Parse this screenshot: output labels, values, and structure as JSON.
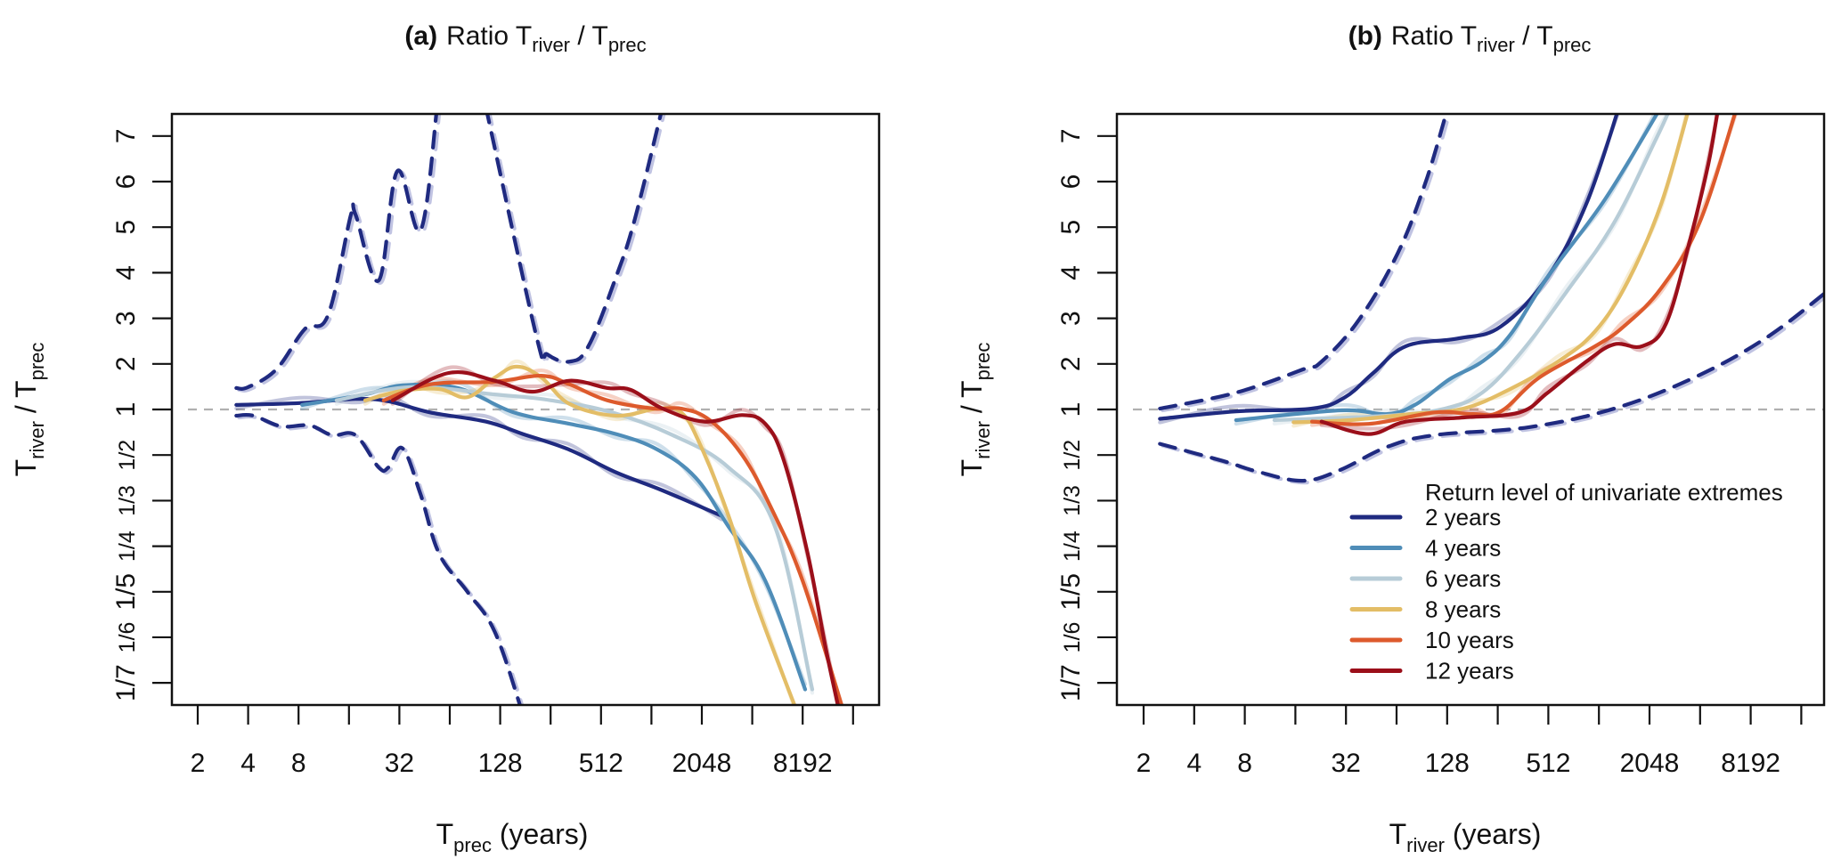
{
  "chart_data": [
    {
      "type": "line",
      "panel_letter": "a",
      "title": "Ratio T_river / T_prec",
      "title_parts": {
        "main": "Ratio T",
        "sub1": "river",
        "sep": " / T",
        "sub2": "prec"
      },
      "xlabel": "T_prec (years)",
      "xlabel_parts": {
        "main": "T",
        "sub": "prec",
        "rest": " (years)"
      },
      "ylabel": "T_river / T_prec",
      "ylabel_parts": {
        "main": "T",
        "sub1": "river",
        "sep": " / T",
        "sub2": "prec"
      },
      "x_scale": "log2",
      "x_ticks": [
        2,
        4,
        8,
        16,
        32,
        64,
        128,
        256,
        512,
        1024,
        2048,
        4096,
        8192,
        16384
      ],
      "x_tick_labels": [
        "2",
        "4",
        "8",
        "",
        "32",
        "",
        "128",
        "",
        "512",
        "",
        "2048",
        "",
        "8192",
        ""
      ],
      "y_scale": "ratio-symmetric",
      "y_ticks": [
        7,
        6,
        5,
        4,
        3,
        2,
        1,
        0.5,
        0.3333,
        0.25,
        0.2,
        0.1667,
        0.1429
      ],
      "y_tick_labels": [
        "7",
        "6",
        "5",
        "4",
        "3",
        "2",
        "1",
        "1/2",
        "1/3",
        "1/4",
        "1/5",
        "1/6",
        "1/7"
      ],
      "reference_line": 1,
      "grid": false,
      "series": [
        {
          "name": "2 years",
          "color": "#1f2a80",
          "style": "solid",
          "points": [
            [
              3.4,
              1.1
            ],
            [
              8.1,
              1.14
            ],
            [
              17.5,
              1.23
            ],
            [
              27.5,
              1.18
            ],
            [
              48.8,
              0.94
            ],
            [
              105,
              0.79
            ],
            [
              175,
              0.65
            ],
            [
              333,
              0.53
            ],
            [
              630,
              0.42
            ],
            [
              1193,
              0.36
            ],
            [
              2684,
              0.3
            ]
          ]
        },
        {
          "name": "4 years",
          "color": "#4f8db8",
          "style": "solid",
          "points": [
            [
              8.4,
              1.1
            ],
            [
              20,
              1.33
            ],
            [
              33.4,
              1.53
            ],
            [
              71.5,
              1.47
            ],
            [
              154,
              0.94
            ],
            [
              333,
              0.76
            ],
            [
              630,
              0.65
            ],
            [
              1120,
              0.53
            ],
            [
              1884,
              0.4
            ],
            [
              2957,
              0.28
            ],
            [
              4904,
              0.21
            ],
            [
              8481,
              0.14
            ]
          ]
        },
        {
          "name": "6 years",
          "color": "#b7ccd7",
          "style": "solid",
          "points": [
            [
              13.5,
              1.2
            ],
            [
              37.8,
              1.49
            ],
            [
              119,
              1.33
            ],
            [
              258,
              1.2
            ],
            [
              596,
              0.94
            ],
            [
              1370,
              0.64
            ],
            [
              2957,
              0.44
            ],
            [
              5594,
              0.28
            ],
            [
              9345,
              0.14
            ]
          ]
        },
        {
          "name": "8 years",
          "color": "#e3bd66",
          "style": "solid",
          "points": [
            [
              20,
              1.2
            ],
            [
              33.4,
              1.41
            ],
            [
              55.3,
              1.45
            ],
            [
              81.6,
              1.27
            ],
            [
              119,
              1.7
            ],
            [
              161,
              1.94
            ],
            [
              226,
              1.7
            ],
            [
              333,
              1.12
            ],
            [
              630,
              0.88
            ],
            [
              1120,
              1.02
            ],
            [
              1541,
              0.94
            ],
            [
              1992,
              0.57
            ],
            [
              2957,
              0.3
            ],
            [
              4329,
              0.19
            ],
            [
              7696,
              0.13
            ]
          ]
        },
        {
          "name": "10 years",
          "color": "#dd5a2c",
          "style": "solid",
          "points": [
            [
              25.8,
              1.2
            ],
            [
              48.8,
              1.55
            ],
            [
              119,
              1.61
            ],
            [
              226,
              1.74
            ],
            [
              333,
              1.55
            ],
            [
              560,
              1.2
            ],
            [
              1060,
              1.02
            ],
            [
              1541,
              1.02
            ],
            [
              2288,
              0.81
            ],
            [
              3566,
              0.5
            ],
            [
              5256,
              0.32
            ],
            [
              8192,
              0.21
            ],
            [
              14562,
              0.13
            ]
          ]
        },
        {
          "name": "12 years",
          "color": "#9b0f1a",
          "style": "solid",
          "points": [
            [
              29.2,
              1.2
            ],
            [
              63.1,
              1.8
            ],
            [
              119,
              1.63
            ],
            [
              199,
              1.39
            ],
            [
              333,
              1.63
            ],
            [
              560,
              1.47
            ],
            [
              771,
              1.43
            ],
            [
              1193,
              1.02
            ],
            [
              2120,
              0.79
            ],
            [
              3566,
              0.89
            ],
            [
              4904,
              0.76
            ],
            [
              6338,
              0.47
            ],
            [
              8780,
              0.24
            ],
            [
              11268,
              0.16
            ],
            [
              13682,
              0.13
            ]
          ]
        },
        {
          "name": "2 years upper bound",
          "color": "#1f2a80",
          "style": "dashed",
          "points": [
            [
              3.4,
              1.47
            ],
            [
              4.0,
              1.49
            ],
            [
              5.9,
              1.88
            ],
            [
              8.7,
              2.76
            ],
            [
              12,
              3.07
            ],
            [
              16.4,
              5.26
            ],
            [
              17.5,
              5.28
            ],
            [
              24.1,
              3.83
            ],
            [
              31.1,
              6.23
            ],
            [
              42.8,
              4.93
            ],
            [
              53.8,
              7.64
            ]
          ]
        },
        {
          "name": "2 years upper bound (cont.)",
          "color": "#1f2a80",
          "style": "dashed",
          "points": [
            [
              105,
              7.64
            ],
            [
              212,
              2.56
            ],
            [
              244,
              2.21
            ],
            [
              333,
              2.05
            ],
            [
              431,
              2.39
            ],
            [
              630,
              3.91
            ],
            [
              815,
              5.18
            ],
            [
              1193,
              7.64
            ]
          ]
        },
        {
          "name": "2 years lower bound",
          "color": "#1f2a80",
          "style": "dashed",
          "points": [
            [
              3.4,
              0.88
            ],
            [
              4.3,
              0.88
            ],
            [
              6.3,
              0.73
            ],
            [
              9.3,
              0.74
            ],
            [
              12.7,
              0.64
            ],
            [
              17.5,
              0.64
            ],
            [
              24.1,
              0.44
            ],
            [
              27.5,
              0.44
            ],
            [
              33.4,
              0.54
            ],
            [
              42.8,
              0.35
            ],
            [
              55.3,
              0.24
            ],
            [
              81.6,
              0.2
            ],
            [
              119,
              0.17
            ],
            [
              175,
              0.13
            ]
          ]
        }
      ]
    },
    {
      "type": "line",
      "panel_letter": "b",
      "title": "Ratio T_river / T_prec",
      "title_parts": {
        "main": "Ratio T",
        "sub1": "river",
        "sep": " / T",
        "sub2": "prec"
      },
      "xlabel": "T_river (years)",
      "xlabel_parts": {
        "main": "T",
        "sub": "river",
        "rest": " (years)"
      },
      "ylabel": "T_river / T_prec",
      "ylabel_parts": {
        "main": "T",
        "sub1": "river",
        "sep": " / T",
        "sub2": "prec"
      },
      "x_scale": "log2",
      "x_ticks": [
        2,
        4,
        8,
        16,
        32,
        64,
        128,
        256,
        512,
        1024,
        2048,
        4096,
        8192,
        16384
      ],
      "x_tick_labels": [
        "2",
        "4",
        "8",
        "",
        "32",
        "",
        "128",
        "",
        "512",
        "",
        "2048",
        "",
        "8192",
        ""
      ],
      "y_scale": "ratio-symmetric",
      "y_ticks": [
        7,
        6,
        5,
        4,
        3,
        2,
        1,
        0.5,
        0.3333,
        0.25,
        0.2,
        0.1667,
        0.1429
      ],
      "y_tick_labels": [
        "7",
        "6",
        "5",
        "4",
        "3",
        "2",
        "1",
        "1/2",
        "1/3",
        "1/4",
        "1/5",
        "1/6",
        "1/7"
      ],
      "reference_line": 1,
      "grid": false,
      "legend": {
        "title": "Return level of univariate extremes",
        "position": "bottom-right",
        "entries": [
          "2 years",
          "4 years",
          "6 years",
          "8 years",
          "10 years",
          "12 years"
        ]
      },
      "series": [
        {
          "name": "2 years",
          "color": "#1f2a80",
          "style": "solid",
          "points": [
            [
              2.5,
              0.83
            ],
            [
              7.1,
              0.96
            ],
            [
              20.1,
              1.02
            ],
            [
              31.6,
              1.27
            ],
            [
              46.5,
              1.8
            ],
            [
              73,
              2.39
            ],
            [
              150,
              2.56
            ],
            [
              267,
              2.82
            ],
            [
              508,
              3.91
            ],
            [
              861,
              5.51
            ],
            [
              1351,
              7.64
            ]
          ]
        },
        {
          "name": "4 years",
          "color": "#4f8db8",
          "style": "solid",
          "points": [
            [
              7.1,
              0.81
            ],
            [
              29.6,
              0.98
            ],
            [
              56.5,
              0.91
            ],
            [
              83.9,
              1.12
            ],
            [
              132,
              1.66
            ],
            [
              207,
              2.05
            ],
            [
              304,
              2.64
            ],
            [
              508,
              3.91
            ],
            [
              1113,
              5.61
            ],
            [
              2402,
              7.64
            ]
          ]
        },
        {
          "name": "6 years",
          "color": "#b7ccd7",
          "style": "solid",
          "points": [
            [
              12,
              0.81
            ],
            [
              56.5,
              0.88
            ],
            [
              124,
              1.02
            ],
            [
              207,
              1.37
            ],
            [
              345,
              2.21
            ],
            [
              657,
              3.58
            ],
            [
              1261,
              5.1
            ],
            [
              2257,
              6.96
            ],
            [
              2740,
              7.64
            ]
          ]
        },
        {
          "name": "8 years",
          "color": "#e3bd66",
          "style": "solid",
          "points": [
            [
              15.6,
              0.78
            ],
            [
              33.8,
              0.81
            ],
            [
              77.7,
              0.91
            ],
            [
              160,
              1.02
            ],
            [
              304,
              1.45
            ],
            [
              584,
              2.05
            ],
            [
              975,
              2.72
            ],
            [
              1531,
              3.83
            ],
            [
              2402,
              5.51
            ],
            [
              3540,
              7.64
            ]
          ]
        },
        {
          "name": "10 years",
          "color": "#dd5a2c",
          "style": "solid",
          "points": [
            [
              20.1,
              0.79
            ],
            [
              43.7,
              0.76
            ],
            [
              108,
              0.94
            ],
            [
              181,
              0.91
            ],
            [
              267,
              0.96
            ],
            [
              452,
              1.7
            ],
            [
              975,
              2.39
            ],
            [
              1438,
              2.82
            ],
            [
              2402,
              3.66
            ],
            [
              4067,
              5.1
            ],
            [
              6793,
              7.64
            ]
          ]
        },
        {
          "name": "12 years",
          "color": "#9b0f1a",
          "style": "solid",
          "points": [
            [
              22.9,
              0.79
            ],
            [
              43.7,
              0.65
            ],
            [
              73,
              0.79
            ],
            [
              160,
              0.85
            ],
            [
              345,
              0.94
            ],
            [
              508,
              1.37
            ],
            [
              861,
              2.05
            ],
            [
              1261,
              2.43
            ],
            [
              1858,
              2.39
            ],
            [
              2574,
              2.89
            ],
            [
              3540,
              4.67
            ],
            [
              4575,
              6.37
            ],
            [
              5256,
              7.64
            ]
          ]
        },
        {
          "name": "2 years upper bound",
          "color": "#1f2a80",
          "style": "dashed",
          "points": [
            [
              2.5,
              1.02
            ],
            [
              7.1,
              1.37
            ],
            [
              17.8,
              1.88
            ],
            [
              22.9,
              2.05
            ],
            [
              38.3,
              2.97
            ],
            [
              64.9,
              4.42
            ],
            [
              94.4,
              5.94
            ],
            [
              124,
              7.39
            ]
          ]
        },
        {
          "name": "2 years lower bound",
          "color": "#1f2a80",
          "style": "dashed",
          "points": [
            [
              2.5,
              0.57
            ],
            [
              5.9,
              0.47
            ],
            [
              9.9,
              0.42
            ],
            [
              17.8,
              0.39
            ],
            [
              29.6,
              0.43
            ],
            [
              56.5,
              0.55
            ],
            [
              108,
              0.64
            ],
            [
              393,
              0.72
            ],
            [
              1261,
              1.02
            ],
            [
              3769,
              1.7
            ],
            [
              10016,
              2.56
            ],
            [
              23170,
              3.58
            ]
          ]
        }
      ]
    }
  ]
}
